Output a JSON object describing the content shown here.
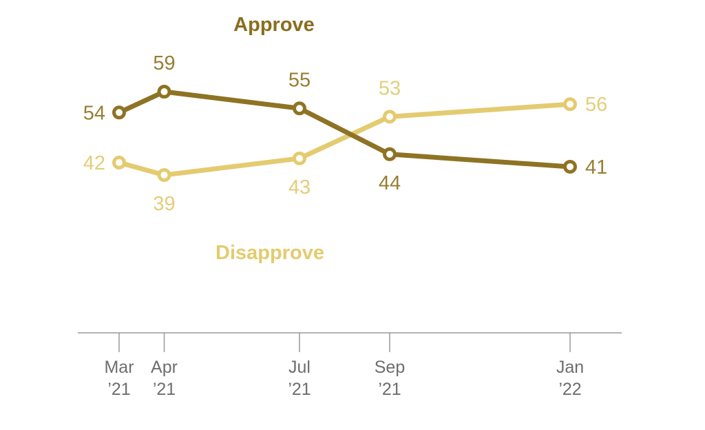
{
  "chart_data": {
    "type": "line",
    "title": "",
    "categories": [
      "Mar ’21",
      "Apr ’21",
      "Jul ’21",
      "Sep ’21",
      "Jan ’22"
    ],
    "x_months": [
      0,
      1,
      4,
      6,
      10
    ],
    "series": [
      {
        "name": "Approve",
        "values": [
          54,
          59,
          55,
          44,
          41
        ],
        "color": "#8E7324",
        "label_color": "#977E33",
        "name_color": "#8A6D1F",
        "label_placements": [
          "left",
          "above",
          "above",
          "below",
          "right"
        ]
      },
      {
        "name": "Disapprove",
        "values": [
          42,
          39,
          43,
          53,
          56
        ],
        "color": "#E4CB70",
        "label_color": "#E4CD7A",
        "name_color": "#E3CB6E",
        "label_placements": [
          "left",
          "below",
          "below",
          "above",
          "right"
        ]
      }
    ],
    "ylim": [
      35,
      63
    ],
    "grid": false,
    "legend_position": "inline-labels",
    "axis_color": "#999999",
    "tick_label_color": "#6E6E6E",
    "marker_fill": "#FFFFFF"
  }
}
